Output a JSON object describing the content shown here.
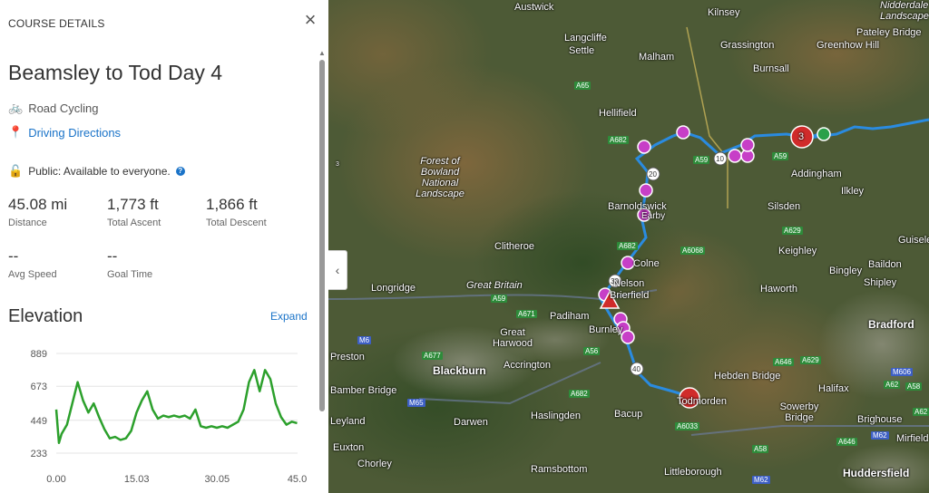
{
  "panel": {
    "header": "COURSE DETAILS",
    "close_icon": "×",
    "title": "Beamsley to Tod Day 4",
    "activity": "Road Cycling",
    "driving_directions": "Driving Directions",
    "privacy": "Public: Available to everyone.",
    "info_icon": "?",
    "stats": [
      {
        "value": "45.08 mi",
        "label": "Distance"
      },
      {
        "value": "1,773 ft",
        "label": "Total Ascent"
      },
      {
        "value": "1,866 ft",
        "label": "Total Descent"
      },
      {
        "value": "--",
        "label": "Avg Speed"
      },
      {
        "value": "--",
        "label": "Goal Time"
      }
    ],
    "elevation_title": "Elevation",
    "expand": "Expand",
    "collapse_icon": "‹"
  },
  "chart_data": {
    "type": "line",
    "yticks": [
      "889",
      "673",
      "449",
      "233"
    ],
    "xticks": [
      "0.00",
      "15.03",
      "30.05",
      "45.0"
    ],
    "ylim": [
      233,
      889
    ],
    "xlim": [
      0,
      45.08
    ],
    "series": [
      {
        "color": "#2ca02c",
        "x": [
          0,
          0.5,
          1,
          2,
          3,
          4,
          5,
          6,
          7,
          8,
          9,
          10,
          11,
          12,
          13,
          14,
          15,
          16,
          17,
          18,
          19,
          20,
          21,
          22,
          23,
          24,
          25,
          26,
          27,
          28,
          29,
          30,
          31,
          32,
          33,
          34,
          35,
          36,
          37,
          38,
          39,
          40,
          41,
          42,
          43,
          44,
          45
        ],
        "y": [
          520,
          300,
          360,
          420,
          560,
          700,
          580,
          500,
          560,
          470,
          390,
          330,
          340,
          320,
          330,
          380,
          500,
          580,
          640,
          520,
          460,
          480,
          470,
          480,
          470,
          480,
          460,
          520,
          410,
          400,
          410,
          400,
          410,
          400,
          420,
          440,
          520,
          700,
          780,
          640,
          780,
          720,
          560,
          470,
          420,
          440,
          430
        ]
      }
    ]
  },
  "map": {
    "towns": [
      {
        "name": "Austwick",
        "big": false
      },
      {
        "name": "Kilnsey",
        "big": false
      },
      {
        "name": "Nidderdale Landscape",
        "big": false
      },
      {
        "name": "Langcliffe",
        "big": false
      },
      {
        "name": "Settle",
        "big": false
      },
      {
        "name": "Malham",
        "big": false
      },
      {
        "name": "Grassington",
        "big": false
      },
      {
        "name": "Greenhow Hill",
        "big": false
      },
      {
        "name": "Pateley Bridge",
        "big": false
      },
      {
        "name": "Burnsall",
        "big": false
      },
      {
        "name": "Hellifield",
        "big": false
      },
      {
        "name": "Forest of Bowland National Landscape",
        "big": false
      },
      {
        "name": "Addingham",
        "big": false
      },
      {
        "name": "Ilkley",
        "big": false
      },
      {
        "name": "Barnoldswick",
        "big": false
      },
      {
        "name": "Earby",
        "big": false
      },
      {
        "name": "Silsden",
        "big": false
      },
      {
        "name": "Clitheroe",
        "big": false
      },
      {
        "name": "Keighley",
        "big": false
      },
      {
        "name": "Guiseley",
        "big": false
      },
      {
        "name": "Colne",
        "big": false
      },
      {
        "name": "Bingley",
        "big": false
      },
      {
        "name": "Baildon",
        "big": false
      },
      {
        "name": "Longridge",
        "big": false
      },
      {
        "name": "Great Britain",
        "big": false
      },
      {
        "name": "Nelson",
        "big": false
      },
      {
        "name": "Brierfield",
        "big": false
      },
      {
        "name": "Haworth",
        "big": false
      },
      {
        "name": "Shipley",
        "big": false
      },
      {
        "name": "Padiham",
        "big": false
      },
      {
        "name": "Great Harwood",
        "big": false
      },
      {
        "name": "Burnley",
        "big": false
      },
      {
        "name": "Bradford",
        "big": true
      },
      {
        "name": "Blackburn",
        "big": true
      },
      {
        "name": "Accrington",
        "big": false
      },
      {
        "name": "Hebden Bridge",
        "big": false
      },
      {
        "name": "Halifax",
        "big": false
      },
      {
        "name": "Bamber Bridge",
        "big": false
      },
      {
        "name": "Bacup",
        "big": false
      },
      {
        "name": "Todmorden",
        "big": false
      },
      {
        "name": "Sowerby Bridge",
        "big": false
      },
      {
        "name": "Brighouse",
        "big": false
      },
      {
        "name": "Darwen",
        "big": false
      },
      {
        "name": "Haslingden",
        "big": false
      },
      {
        "name": "Euxton",
        "big": false
      },
      {
        "name": "Chorley",
        "big": false
      },
      {
        "name": "Ramsbottom",
        "big": false
      },
      {
        "name": "Littleborough",
        "big": false
      },
      {
        "name": "Huddersfield",
        "big": true
      },
      {
        "name": "Preston",
        "big": false
      },
      {
        "name": "Leyland",
        "big": false
      },
      {
        "name": "Mirfield",
        "big": false
      }
    ],
    "roads": [
      "A65",
      "A682",
      "A59",
      "A6068",
      "A629",
      "A671",
      "A56",
      "A682",
      "A646",
      "A6033",
      "A58",
      "A629",
      "A646",
      "A62",
      "A59",
      "A677",
      "M65",
      "M6",
      "M606",
      "M62",
      "A62",
      "A58",
      "M62",
      "A682",
      "A59"
    ],
    "mile_markers": [
      "10",
      "20",
      "30",
      "40"
    ],
    "start_cluster": "3"
  }
}
